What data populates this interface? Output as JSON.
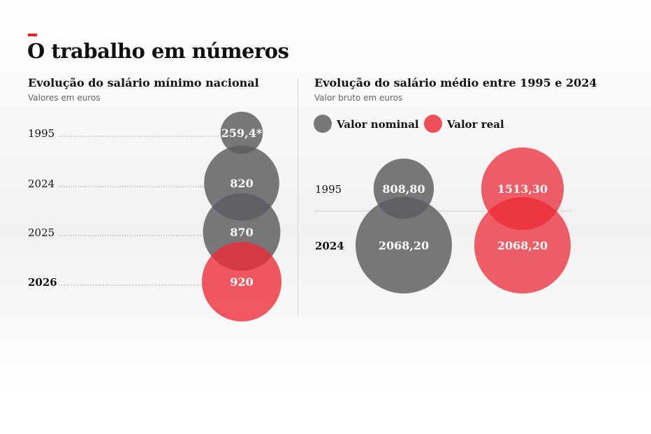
{
  "title": "O trabalho em números",
  "colors": {
    "accent": "#e3262f",
    "nominal": "#5b5b5f",
    "real": "#ec2a35"
  },
  "chart_data": [
    {
      "type": "bubble",
      "title": "Evolução do salário mínimo nacional",
      "subtitle": "Valores em euros",
      "categories": [
        "1995",
        "2024",
        "2025",
        "2026"
      ],
      "values": [
        259.4,
        820,
        870,
        920
      ],
      "value_labels": [
        "259,4*",
        "820",
        "870",
        "920"
      ],
      "highlight": "2026"
    },
    {
      "type": "bubble",
      "title": "Evolução do salário médio entre 1995 e 2024",
      "subtitle": "Valor bruto em euros",
      "categories": [
        "1995",
        "2024"
      ],
      "legend": [
        "Valor nominal",
        "Valor real"
      ],
      "series": [
        {
          "name": "Valor nominal",
          "values": [
            808.8,
            2068.2
          ],
          "labels": [
            "808,80",
            "2068,20"
          ]
        },
        {
          "name": "Valor real",
          "values": [
            1513.3,
            2068.2
          ],
          "labels": [
            "1513,30",
            "2068,20"
          ]
        }
      ]
    }
  ]
}
